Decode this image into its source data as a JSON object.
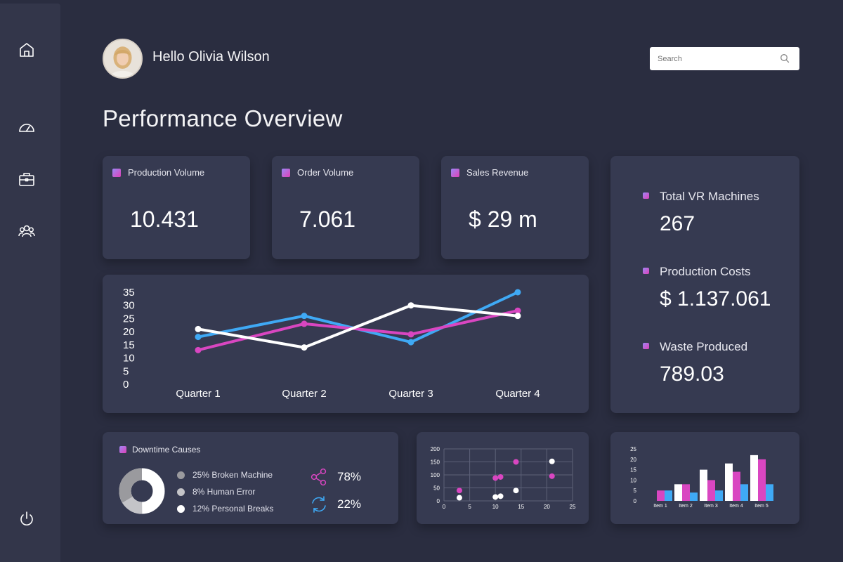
{
  "sidebar": {
    "items": [
      {
        "icon": "home-icon",
        "name": "nav-home"
      },
      {
        "icon": "gauge-icon",
        "name": "nav-dashboard"
      },
      {
        "icon": "briefcase-icon",
        "name": "nav-portfolio"
      },
      {
        "icon": "users-icon",
        "name": "nav-team"
      }
    ],
    "footer_icon": "power-icon"
  },
  "header": {
    "greeting": "Hello Olivia Wilson",
    "search_placeholder": "Search"
  },
  "page_title": "Performance Overview",
  "kpis": [
    {
      "label": "Production Volume",
      "value": "10.431"
    },
    {
      "label": "Order Volume",
      "value": "7.061"
    },
    {
      "label": "Sales Revenue",
      "value": "$ 29 m"
    }
  ],
  "stats": [
    {
      "label": "Total VR Machines",
      "value": "267"
    },
    {
      "label": "Production Costs",
      "value": "$ 1.137.061"
    },
    {
      "label": "Waste Produced",
      "value": "789.03"
    }
  ],
  "downtime": {
    "title": "Downtime Causes",
    "causes": [
      {
        "label": "25% Broken Machine",
        "color": "#9a9a9e"
      },
      {
        "label": "8% Human Error",
        "color": "#c4c4c8"
      },
      {
        "label": "12% Personal Breaks",
        "color": "#ffffff"
      }
    ],
    "metrics": [
      {
        "icon": "share-icon",
        "value": "78%",
        "color": "#d946c1"
      },
      {
        "icon": "refresh-icon",
        "value": "22%",
        "color": "#3fa9f5"
      }
    ]
  },
  "chart_data": [
    {
      "type": "line",
      "categories": [
        "Quarter 1",
        "Quarter 2",
        "Quarter 3",
        "Quarter 4"
      ],
      "yticks": [
        0,
        5,
        10,
        15,
        20,
        25,
        30,
        35
      ],
      "ylim": [
        0,
        35
      ],
      "series": [
        {
          "color": "#3fa9f5",
          "values": [
            18,
            26,
            16,
            35
          ]
        },
        {
          "color": "#d946c1",
          "values": [
            13,
            23,
            19,
            28
          ]
        },
        {
          "color": "#ffffff",
          "values": [
            21,
            14,
            30,
            26
          ]
        }
      ]
    },
    {
      "type": "scatter",
      "xlim": [
        0,
        25
      ],
      "ylim": [
        0,
        200
      ],
      "xticks": [
        0,
        5,
        10,
        15,
        20,
        25
      ],
      "yticks": [
        0,
        50,
        100,
        150,
        200
      ],
      "grid": true,
      "series": [
        {
          "color": "#d946c1",
          "points": [
            [
              3,
              40
            ],
            [
              10,
              88
            ],
            [
              11,
              92
            ],
            [
              14,
              150
            ],
            [
              21,
              95
            ]
          ]
        },
        {
          "color": "#ffffff",
          "points": [
            [
              3,
              12
            ],
            [
              10,
              15
            ],
            [
              11,
              18
            ],
            [
              14,
              40
            ],
            [
              21,
              152
            ]
          ]
        }
      ]
    },
    {
      "type": "bar",
      "categories": [
        "Item 1",
        "Item 2",
        "Item 3",
        "Item 4",
        "Item 5"
      ],
      "yticks": [
        0,
        5,
        10,
        15,
        20,
        25
      ],
      "ylim": [
        0,
        25
      ],
      "series": [
        {
          "color": "#d946c1",
          "values": [
            5,
            8,
            10,
            14,
            20
          ]
        },
        {
          "color": "#ffffff",
          "values": [
            0,
            8,
            15,
            18,
            22
          ]
        },
        {
          "color": "#3fa9f5",
          "values": [
            5,
            4,
            5,
            8,
            8
          ]
        }
      ]
    }
  ]
}
